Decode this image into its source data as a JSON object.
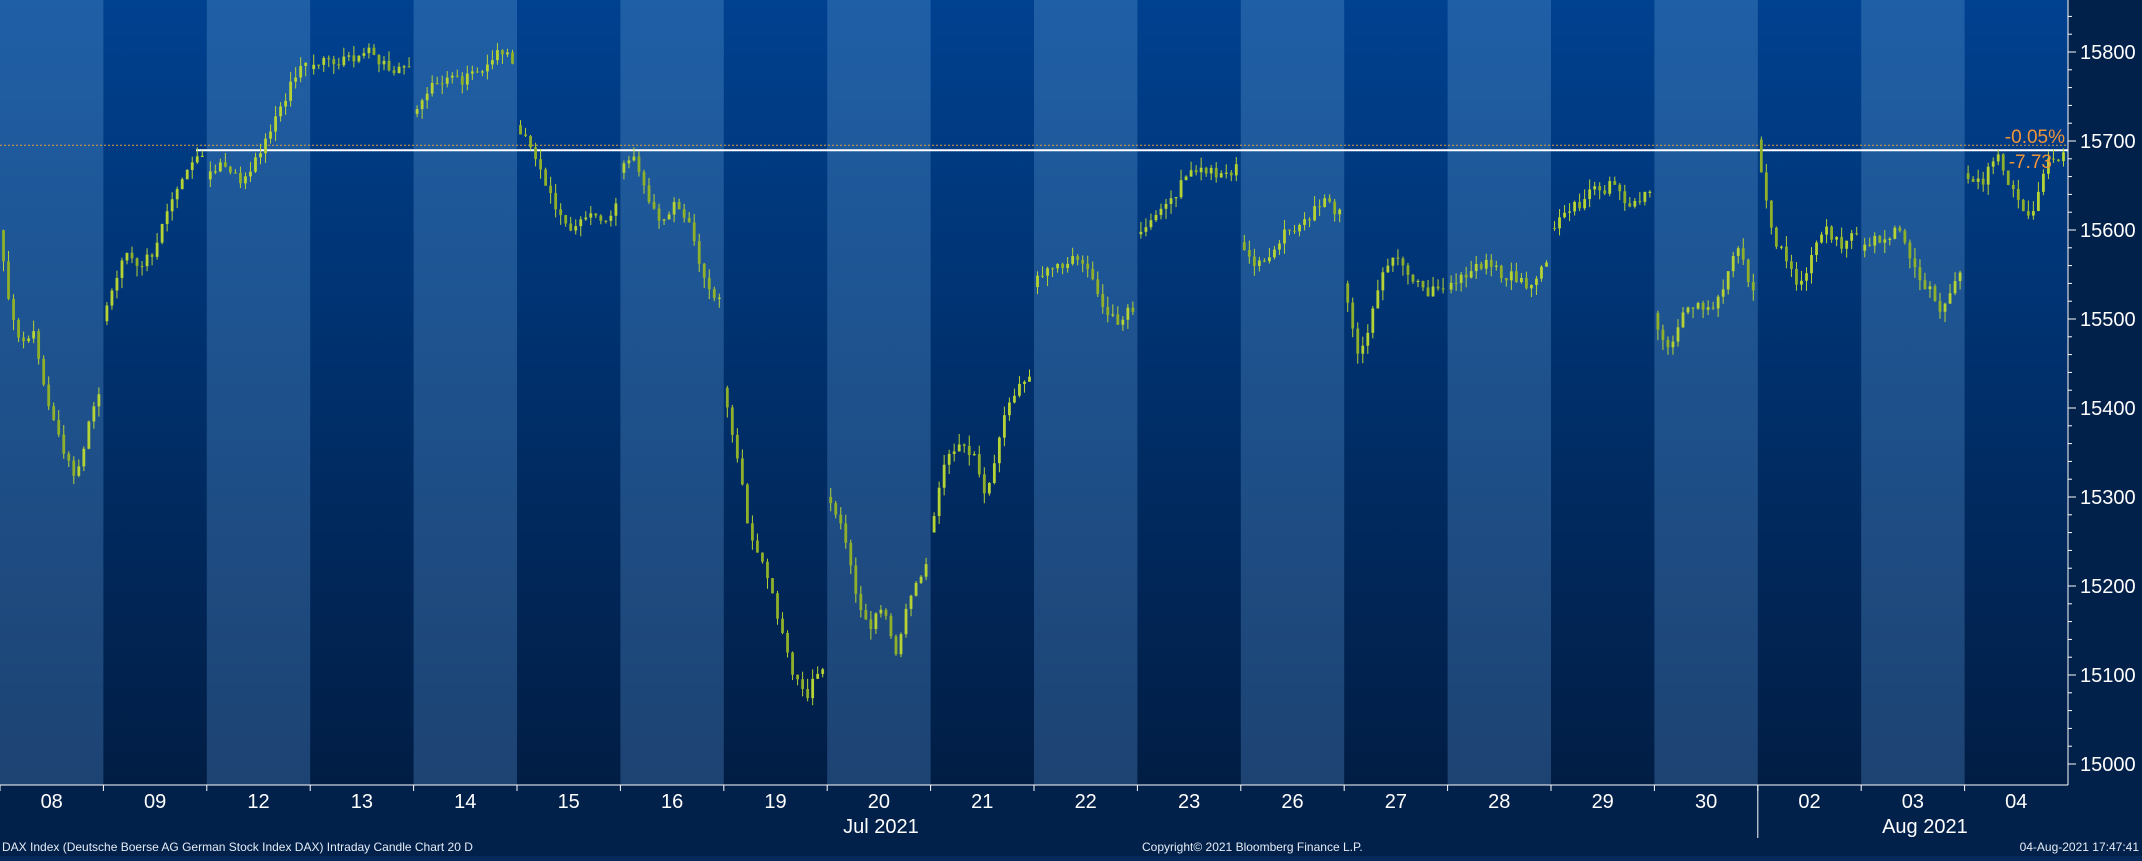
{
  "chart_data": {
    "type": "candlestick",
    "ylim": [
      14975,
      15860
    ],
    "y_ticks": [
      15000,
      15100,
      15200,
      15300,
      15400,
      15500,
      15600,
      15700,
      15800
    ],
    "x_day_labels": [
      "08",
      "09",
      "12",
      "13",
      "14",
      "15",
      "16",
      "19",
      "20",
      "21",
      "22",
      "23",
      "26",
      "27",
      "28",
      "29",
      "30",
      "02",
      "03",
      "04"
    ],
    "x_month_labels": [
      "Jul 2021",
      "Aug 2021"
    ],
    "reference_level": 15693,
    "last_price": 15685,
    "change_pct": "-0.05%",
    "change_abs": "-7.73",
    "candle_color": "#b5d334",
    "grid": false,
    "bands": [
      "#1a5a9c",
      "#02295c"
    ],
    "days": [
      {
        "label": "08",
        "open": 15600,
        "close": 15420,
        "high": 15610,
        "low": 15310,
        "path": [
          15600,
          15520,
          15470,
          15490,
          15430,
          15380,
          15350,
          15320,
          15380,
          15420
        ]
      },
      {
        "label": "09",
        "open": 15500,
        "close": 15690,
        "high": 15740,
        "low": 15480,
        "path": [
          15500,
          15540,
          15575,
          15560,
          15575,
          15610,
          15640,
          15670,
          15690
        ]
      },
      {
        "label": "12",
        "open": 15660,
        "close": 15790,
        "high": 15810,
        "low": 15630,
        "path": [
          15660,
          15680,
          15655,
          15680,
          15720,
          15760,
          15790
        ]
      },
      {
        "label": "13",
        "open": 15780,
        "close": 15790,
        "high": 15810,
        "low": 15760,
        "path": [
          15780,
          15790,
          15785,
          15795,
          15800,
          15790,
          15780,
          15790
        ]
      },
      {
        "label": "14",
        "open": 15730,
        "close": 15790,
        "high": 15810,
        "low": 15710,
        "path": [
          15730,
          15760,
          15770,
          15765,
          15780,
          15800,
          15790
        ]
      },
      {
        "label": "15",
        "open": 15720,
        "close": 15630,
        "high": 15740,
        "low": 15590,
        "path": [
          15720,
          15690,
          15660,
          15620,
          15600,
          15620,
          15610,
          15630
        ]
      },
      {
        "label": "16",
        "open": 15670,
        "close": 15520,
        "high": 15710,
        "low": 15480,
        "path": [
          15670,
          15690,
          15640,
          15610,
          15630,
          15600,
          15540,
          15520
        ]
      },
      {
        "label": "19",
        "open": 15420,
        "close": 15110,
        "high": 15425,
        "low": 15050,
        "path": [
          15420,
          15350,
          15250,
          15220,
          15160,
          15100,
          15080,
          15110
        ]
      },
      {
        "label": "20",
        "open": 15300,
        "close": 15220,
        "high": 15310,
        "low": 15090,
        "path": [
          15300,
          15270,
          15200,
          15150,
          15180,
          15120,
          15200,
          15220
        ]
      },
      {
        "label": "21",
        "open": 15260,
        "close": 15430,
        "high": 15450,
        "low": 15260,
        "path": [
          15260,
          15330,
          15360,
          15350,
          15300,
          15380,
          15420,
          15430
        ]
      },
      {
        "label": "22",
        "open": 15540,
        "close": 15510,
        "high": 15580,
        "low": 15470,
        "path": [
          15540,
          15560,
          15555,
          15570,
          15560,
          15510,
          15500,
          15510
        ]
      },
      {
        "label": "23",
        "open": 15600,
        "close": 15670,
        "high": 15685,
        "low": 15590,
        "path": [
          15600,
          15610,
          15630,
          15660,
          15670,
          15660,
          15670
        ]
      },
      {
        "label": "26",
        "open": 15590,
        "close": 15620,
        "high": 15640,
        "low": 15545,
        "path": [
          15590,
          15560,
          15580,
          15600,
          15610,
          15630,
          15620
        ]
      },
      {
        "label": "27",
        "open": 15540,
        "close": 15540,
        "high": 15590,
        "low": 15425,
        "path": [
          15540,
          15460,
          15500,
          15560,
          15570,
          15540,
          15530,
          15540
        ]
      },
      {
        "label": "28",
        "open": 15530,
        "close": 15560,
        "high": 15580,
        "low": 15520,
        "path": [
          15530,
          15550,
          15560,
          15550,
          15540,
          15560
        ]
      },
      {
        "label": "29",
        "open": 15600,
        "close": 15640,
        "high": 15660,
        "low": 15590,
        "path": [
          15600,
          15620,
          15640,
          15650,
          15630,
          15640
        ]
      },
      {
        "label": "30",
        "open": 15500,
        "close": 15530,
        "high": 15610,
        "low": 15440,
        "path": [
          15500,
          15470,
          15520,
          15510,
          15520,
          15580,
          15530
        ]
      },
      {
        "label": "02",
        "open": 15700,
        "close": 15600,
        "high": 15705,
        "low": 15510,
        "path": [
          15700,
          15600,
          15570,
          15530,
          15580,
          15600,
          15580,
          15600
        ]
      },
      {
        "label": "03",
        "open": 15580,
        "close": 15555,
        "high": 15610,
        "low": 15490,
        "path": [
          15580,
          15590,
          15600,
          15550,
          15510,
          15555
        ]
      },
      {
        "label": "04",
        "open": 15670,
        "close": 15685,
        "high": 15715,
        "low": 15600,
        "path": [
          15670,
          15650,
          15690,
          15640,
          15610,
          15680,
          15685
        ]
      }
    ]
  },
  "footer": {
    "left": "DAX Index (Deutsche Boerse AG German Stock Index DAX) Intraday Candle Chart 20 D",
    "center": "Copyright© 2021 Bloomberg Finance L.P.",
    "right": "04-Aug-2021 17:47:41"
  }
}
